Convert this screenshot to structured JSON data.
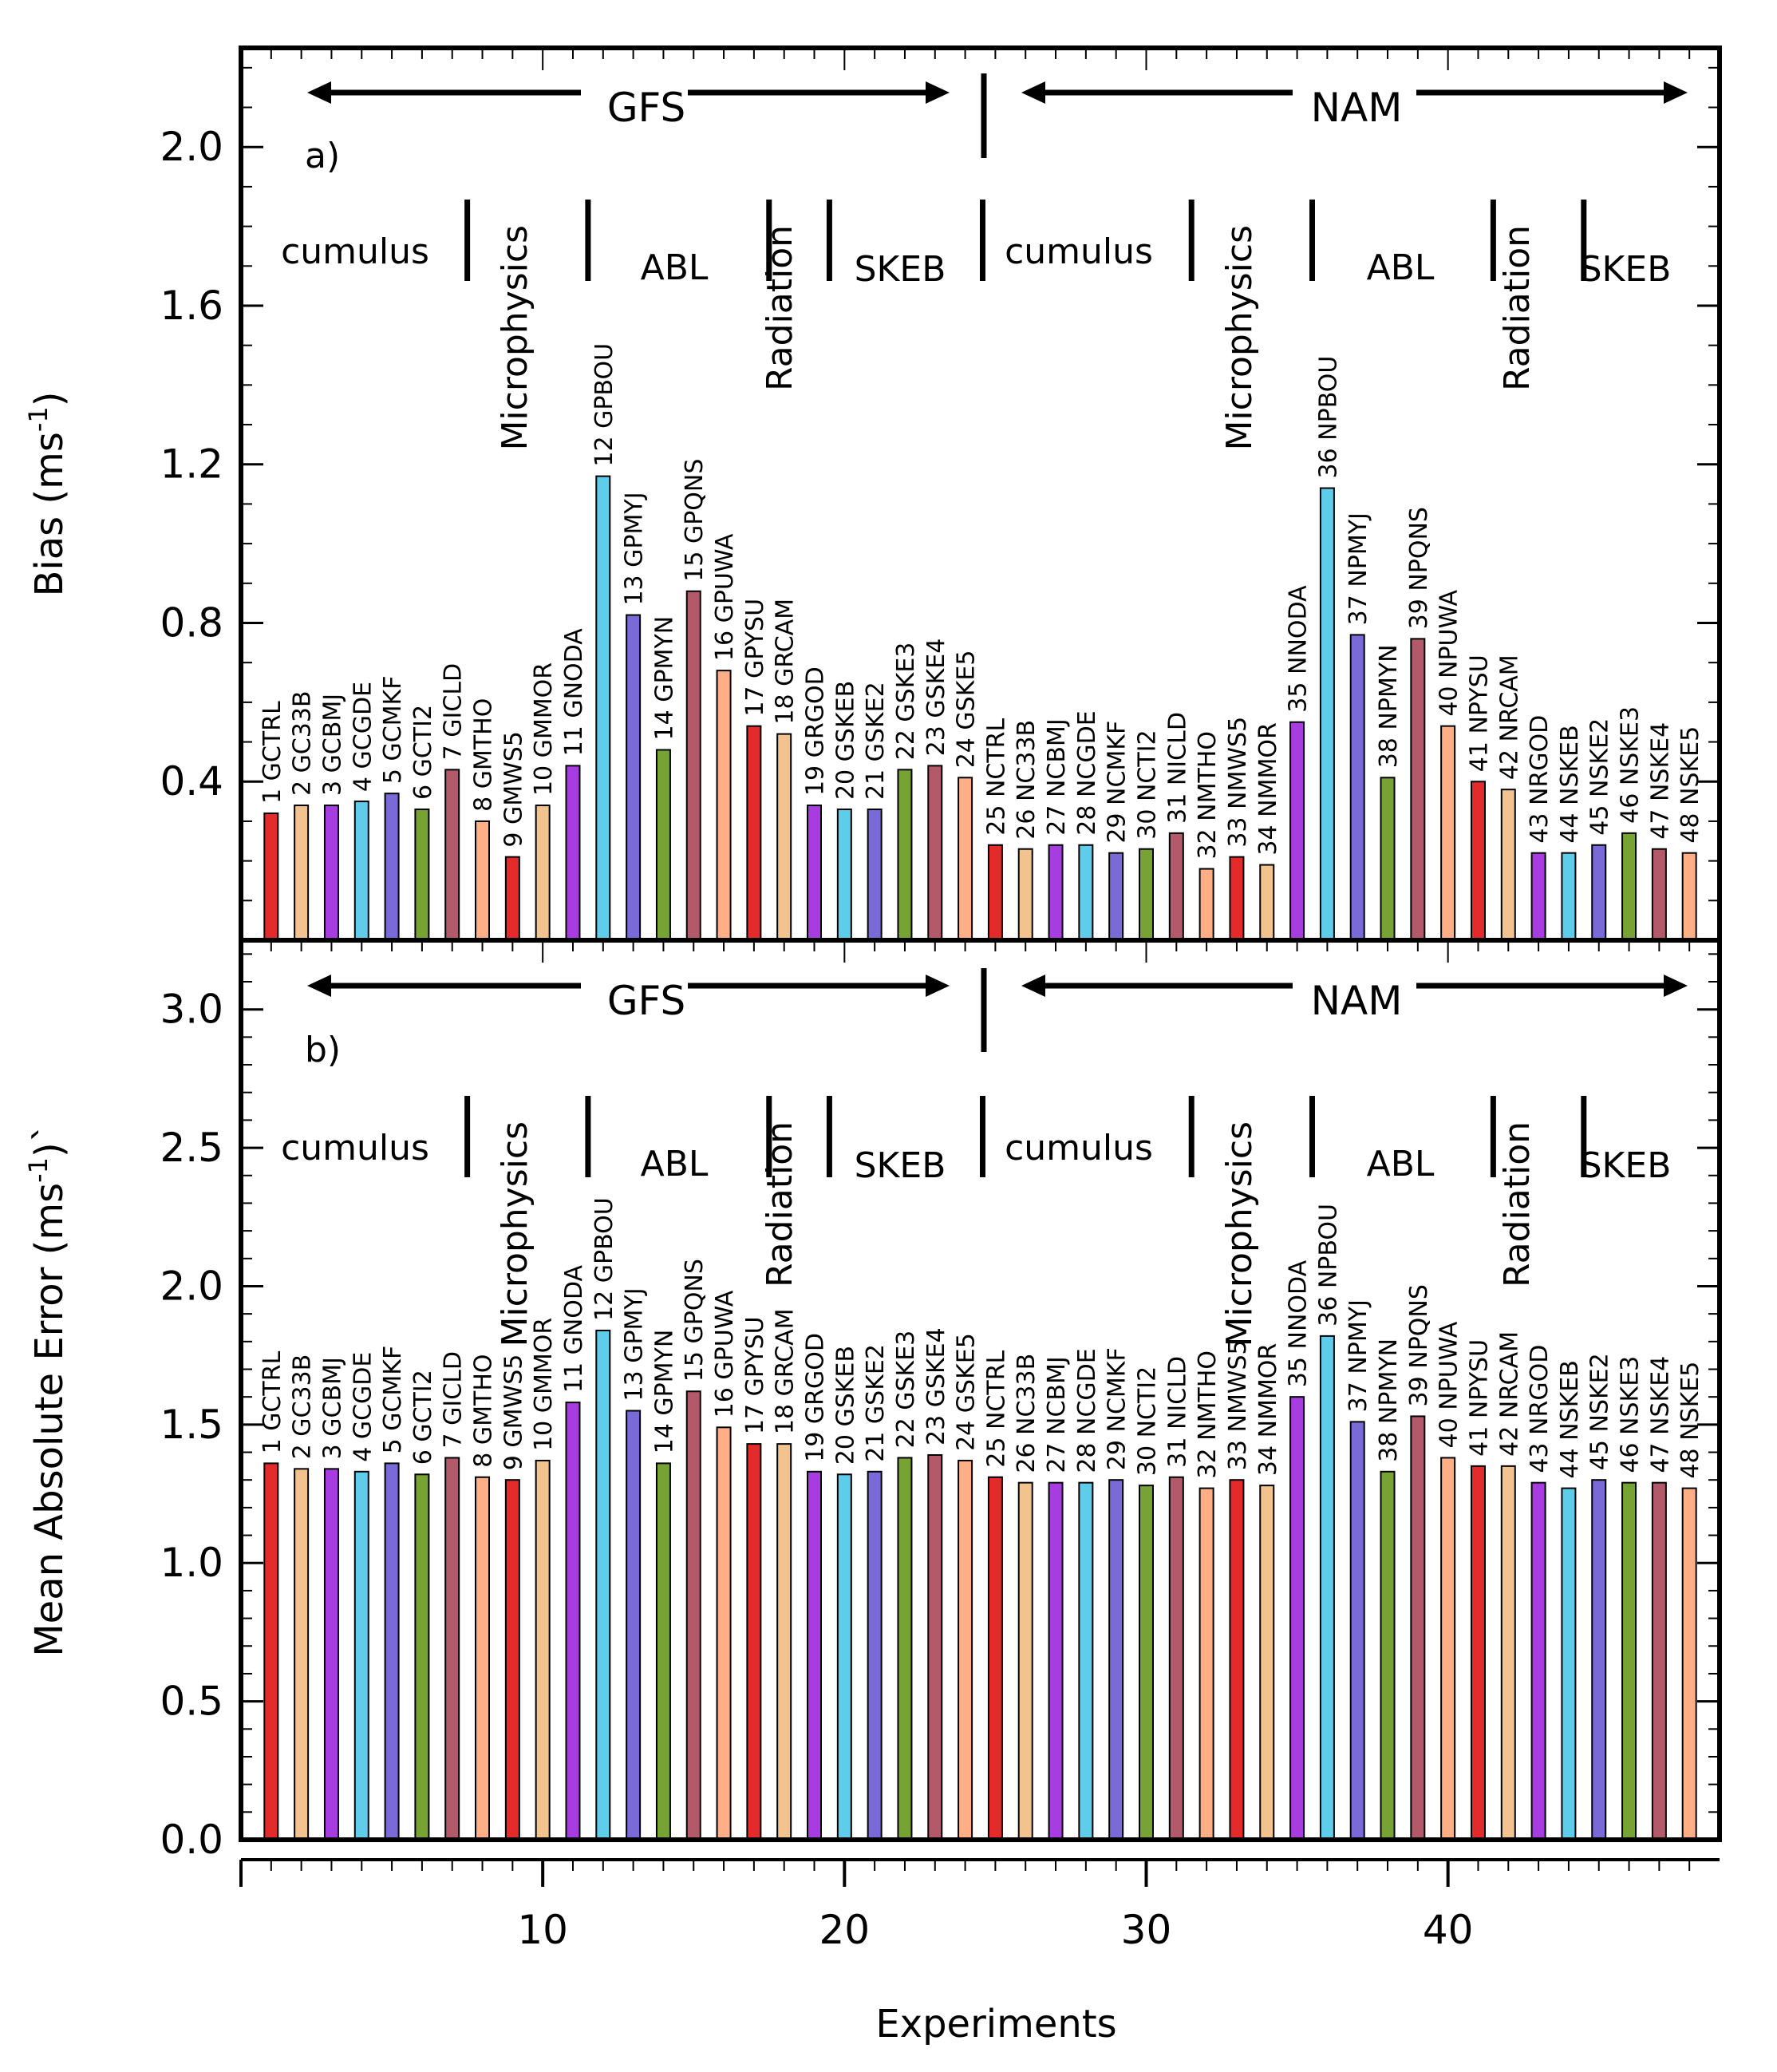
{
  "chart_data": [
    {
      "panel_label": "a)",
      "type": "bar",
      "x": [
        1,
        2,
        3,
        4,
        5,
        6,
        7,
        8,
        9,
        10,
        11,
        12,
        13,
        14,
        15,
        16,
        17,
        18,
        19,
        20,
        21,
        22,
        23,
        24,
        25,
        26,
        27,
        28,
        29,
        30,
        31,
        32,
        33,
        34,
        35,
        36,
        37,
        38,
        39,
        40,
        41,
        42,
        43,
        44,
        45,
        46,
        47,
        48
      ],
      "values": [
        0.32,
        0.34,
        0.34,
        0.35,
        0.37,
        0.33,
        0.43,
        0.3,
        0.21,
        0.34,
        0.44,
        1.17,
        0.82,
        0.48,
        0.88,
        0.68,
        0.54,
        0.52,
        0.34,
        0.33,
        0.33,
        0.43,
        0.44,
        0.41,
        0.24,
        0.23,
        0.24,
        0.24,
        0.22,
        0.23,
        0.27,
        0.18,
        0.21,
        0.19,
        0.55,
        1.14,
        0.77,
        0.41,
        0.76,
        0.54,
        0.4,
        0.38,
        0.22,
        0.22,
        0.24,
        0.27,
        0.23,
        0.22
      ],
      "ylabel": "Bias (ms",
      "ylabel_sup": "-1",
      "ylabel_end": ")",
      "ylim": [
        0,
        2.25
      ],
      "yticks": [
        "0.4",
        "0.8",
        "1.2",
        "1.6",
        "2.0"
      ],
      "model_labels": [
        "GFS",
        "NAM"
      ],
      "group_labels": [
        "cumulus",
        "Microphysics",
        "ABL",
        "Radiation",
        "SKEB",
        "cumulus",
        "Microphysics",
        "ABL",
        "Radiation",
        "SKEB"
      ]
    },
    {
      "panel_label": "b)",
      "type": "bar",
      "x": [
        1,
        2,
        3,
        4,
        5,
        6,
        7,
        8,
        9,
        10,
        11,
        12,
        13,
        14,
        15,
        16,
        17,
        18,
        19,
        20,
        21,
        22,
        23,
        24,
        25,
        26,
        27,
        28,
        29,
        30,
        31,
        32,
        33,
        34,
        35,
        36,
        37,
        38,
        39,
        40,
        41,
        42,
        43,
        44,
        45,
        46,
        47,
        48
      ],
      "values": [
        1.36,
        1.34,
        1.34,
        1.33,
        1.36,
        1.32,
        1.38,
        1.31,
        1.3,
        1.37,
        1.58,
        1.84,
        1.55,
        1.36,
        1.62,
        1.49,
        1.43,
        1.43,
        1.33,
        1.32,
        1.33,
        1.38,
        1.39,
        1.37,
        1.31,
        1.29,
        1.29,
        1.29,
        1.3,
        1.28,
        1.31,
        1.27,
        1.3,
        1.28,
        1.6,
        1.82,
        1.51,
        1.33,
        1.53,
        1.38,
        1.35,
        1.35,
        1.29,
        1.27,
        1.3,
        1.29,
        1.29,
        1.27
      ],
      "ylabel": "Mean Absolute Error (ms",
      "ylabel_sup": "-1",
      "ylabel_end": ")`",
      "ylim": [
        0,
        3.25
      ],
      "yticks": [
        "0.0",
        "0.5",
        "1.0",
        "1.5",
        "2.0",
        "2.5",
        "3.0"
      ],
      "model_labels": [
        "GFS",
        "NAM"
      ],
      "group_labels": [
        "cumulus",
        "Microphysics",
        "ABL",
        "Radiation",
        "SKEB",
        "cumulus",
        "Microphysics",
        "ABL",
        "Radiation",
        "SKEB"
      ]
    }
  ],
  "experiments": [
    "1  GCTRL",
    "2  GC33B",
    "3  GCBMJ",
    "4  GCGDE",
    "5  GCMKF",
    "6  GCTI2",
    "7  GICLD",
    "8  GMTHO",
    "9  GMWS5",
    "10 GMMOR",
    "11 GNODA",
    "12 GPBOU",
    "13 GPMYJ",
    "14 GPMYN",
    "15 GPQNS",
    "16 GPUWA",
    "17 GPYSU",
    "18 GRCAM",
    "19 GRGOD",
    "20 GSKEB",
    "21 GSKE2",
    "22 GSKE3",
    "23 GSKE4",
    "24 GSKE5",
    "25 NCTRL",
    "26 NC33B",
    "27 NCBMJ",
    "28 NCGDE",
    "29 NCMKF",
    "30 NCTI2",
    "31 NICLD",
    "32 NMTHO",
    "33 NMWS5",
    "34 NMMOR",
    "35 NNODA",
    "36 NPBOU",
    "37 NPMYJ",
    "38 NPMYN",
    "39 NPQNS",
    "40 NPUWA",
    "41 NPYSU",
    "42 NRCAM",
    "43 NRGOD",
    "44 NSKEB",
    "45 NSKE2",
    "46 NSKE3",
    "47 NSKE4",
    "48 NSKE5"
  ],
  "bar_colors": [
    "#e32b2b",
    "#f2c38f",
    "#a73de0",
    "#5fcdea",
    "#7a6ad8",
    "#77a234",
    "#b35a6a",
    "#ffae86",
    "#e32b2b",
    "#f2c38f",
    "#a73de0",
    "#5fcdea",
    "#7a6ad8",
    "#77a234",
    "#b35a6a",
    "#ffae86",
    "#e32b2b",
    "#f2c38f",
    "#a73de0",
    "#5fcdea",
    "#7a6ad8",
    "#77a234",
    "#b35a6a",
    "#ffae86",
    "#e32b2b",
    "#f2c38f",
    "#a73de0",
    "#5fcdea",
    "#7a6ad8",
    "#77a234",
    "#b35a6a",
    "#ffae86",
    "#e32b2b",
    "#f2c38f",
    "#a73de0",
    "#5fcdea",
    "#7a6ad8",
    "#77a234",
    "#b35a6a",
    "#ffae86",
    "#e32b2b",
    "#f2c38f",
    "#a73de0",
    "#5fcdea",
    "#7a6ad8",
    "#77a234",
    "#b35a6a",
    "#ffae86"
  ],
  "x_axis": {
    "label": "Experiments",
    "ticks": [
      10,
      20,
      30,
      40
    ],
    "xlim": [
      0,
      49
    ]
  }
}
